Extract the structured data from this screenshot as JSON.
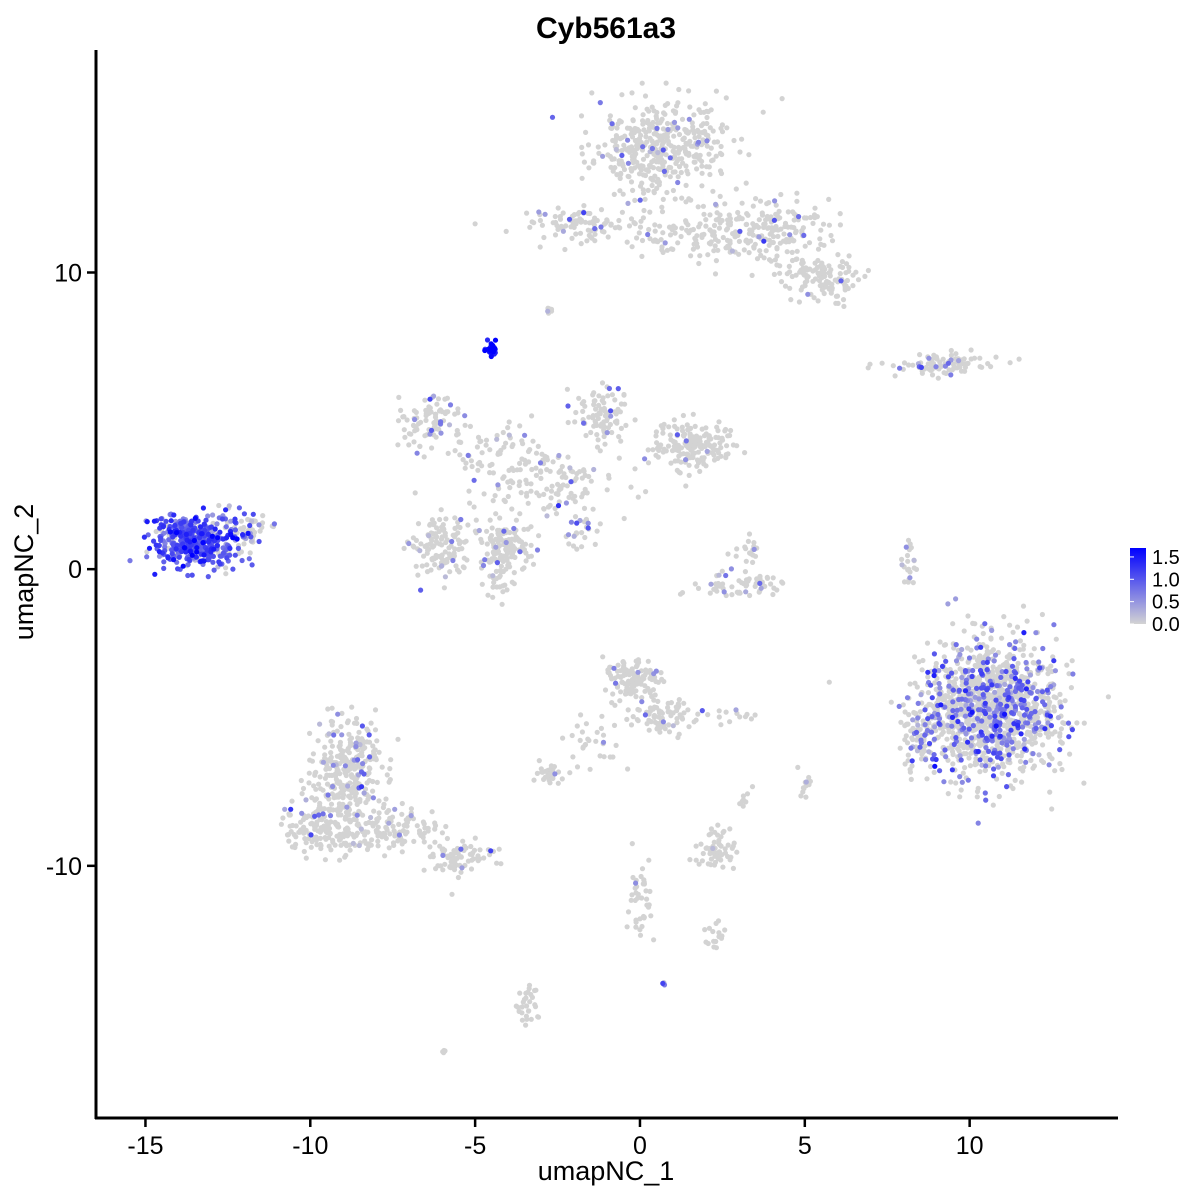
{
  "chart_data": {
    "type": "scatter",
    "title": "Cyb561a3",
    "xlabel": "umapNC_1",
    "ylabel": "umapNC_2",
    "xlim": [
      -16.5,
      14.5
    ],
    "ylim": [
      -18.5,
      17.5
    ],
    "x_ticks": [
      -15,
      -10,
      -5,
      0,
      5,
      10
    ],
    "x_tick_labels": [
      "-15",
      "-10",
      "-5",
      "0",
      "5",
      "10"
    ],
    "y_ticks": [
      -10,
      0,
      10
    ],
    "y_tick_labels": [
      "-10",
      "0",
      "10"
    ],
    "grid": false,
    "legend_position": "right",
    "color_scale": {
      "low_color": "#d3d3d3",
      "high_color": "#0000ff",
      "min": 0,
      "max": 1.7,
      "breaks": [
        0.0,
        0.5,
        1.0,
        1.5
      ],
      "break_labels": [
        "0.0",
        "0.5",
        "1.0",
        "1.5"
      ]
    },
    "clusters": [
      {
        "cx": 0.6,
        "cy": 14.2,
        "sx": 1.3,
        "sy": 1.1,
        "n": 420,
        "expr_frac": 0.06,
        "expr_mean": 0.6
      },
      {
        "cx": 3.6,
        "cy": 11.4,
        "sx": 1.4,
        "sy": 0.7,
        "n": 220,
        "expr_frac": 0.06,
        "expr_mean": 0.6
      },
      {
        "cx": 5.5,
        "cy": 9.8,
        "sx": 0.8,
        "sy": 0.5,
        "n": 120,
        "expr_frac": 0.04,
        "expr_mean": 0.6
      },
      {
        "cx": -1.9,
        "cy": 11.6,
        "sx": 1.1,
        "sy": 0.35,
        "n": 90,
        "expr_frac": 0.07,
        "expr_mean": 0.6
      },
      {
        "cx": 1.0,
        "cy": 11.2,
        "sx": 1.0,
        "sy": 0.5,
        "n": 60,
        "expr_frac": 0.05,
        "expr_mean": 0.6
      },
      {
        "cx": -4.5,
        "cy": 7.4,
        "sx": 0.13,
        "sy": 0.13,
        "n": 28,
        "expr_frac": 1.0,
        "expr_mean": 1.55
      },
      {
        "cx": -2.7,
        "cy": 8.7,
        "sx": 0.1,
        "sy": 0.1,
        "n": 6,
        "expr_frac": 0.2,
        "expr_mean": 0.5
      },
      {
        "cx": 9.1,
        "cy": 6.9,
        "sx": 1.1,
        "sy": 0.25,
        "n": 90,
        "expr_frac": 0.08,
        "expr_mean": 0.6
      },
      {
        "cx": 1.6,
        "cy": 4.1,
        "sx": 0.8,
        "sy": 0.55,
        "n": 170,
        "expr_frac": 0.04,
        "expr_mean": 0.6
      },
      {
        "cx": -1.1,
        "cy": 5.1,
        "sx": 0.6,
        "sy": 0.7,
        "n": 90,
        "expr_frac": 0.06,
        "expr_mean": 0.6
      },
      {
        "cx": -2.6,
        "cy": 2.9,
        "sx": 1.3,
        "sy": 0.9,
        "n": 120,
        "expr_frac": 0.04,
        "expr_mean": 0.6
      },
      {
        "cx": -6.3,
        "cy": 5.0,
        "sx": 0.8,
        "sy": 0.7,
        "n": 90,
        "expr_frac": 0.12,
        "expr_mean": 0.6
      },
      {
        "cx": -4.4,
        "cy": 3.9,
        "sx": 0.8,
        "sy": 0.8,
        "n": 60,
        "expr_frac": 0.08,
        "expr_mean": 0.6
      },
      {
        "cx": -6.0,
        "cy": 0.7,
        "sx": 0.55,
        "sy": 0.7,
        "n": 130,
        "expr_frac": 0.06,
        "expr_mean": 0.6
      },
      {
        "cx": -4.1,
        "cy": 0.6,
        "sx": 0.55,
        "sy": 0.8,
        "n": 150,
        "expr_frac": 0.06,
        "expr_mean": 0.6
      },
      {
        "cx": -1.9,
        "cy": 1.2,
        "sx": 0.4,
        "sy": 0.35,
        "n": 25,
        "expr_frac": 0.4,
        "expr_mean": 0.7
      },
      {
        "cx": -13.5,
        "cy": 1.0,
        "sx": 0.85,
        "sy": 0.55,
        "n": 480,
        "expr_frac": 0.85,
        "expr_mean": 1.0
      },
      {
        "cx": -12.0,
        "cy": 1.3,
        "sx": 0.5,
        "sy": 0.4,
        "n": 60,
        "expr_frac": 0.3,
        "expr_mean": 0.7
      },
      {
        "cx": 3.3,
        "cy": -0.6,
        "sx": 1.0,
        "sy": 0.35,
        "n": 60,
        "expr_frac": 0.1,
        "expr_mean": 0.6
      },
      {
        "cx": 3.3,
        "cy": 0.6,
        "sx": 0.3,
        "sy": 0.3,
        "n": 18,
        "expr_frac": 0.05,
        "expr_mean": 0.5
      },
      {
        "cx": 8.1,
        "cy": 0.1,
        "sx": 0.15,
        "sy": 0.6,
        "n": 22,
        "expr_frac": 0.15,
        "expr_mean": 0.5
      },
      {
        "cx": 10.6,
        "cy": -4.7,
        "sx": 1.35,
        "sy": 1.55,
        "n": 1300,
        "expr_frac": 0.26,
        "expr_mean": 0.8
      },
      {
        "cx": 8.5,
        "cy": -5.6,
        "sx": 0.35,
        "sy": 0.7,
        "n": 60,
        "expr_frac": 0.25,
        "expr_mean": 0.7
      },
      {
        "cx": -0.3,
        "cy": -3.7,
        "sx": 0.55,
        "sy": 0.45,
        "n": 120,
        "expr_frac": 0.05,
        "expr_mean": 0.6
      },
      {
        "cx": 0.7,
        "cy": -4.9,
        "sx": 0.7,
        "sy": 0.45,
        "n": 80,
        "expr_frac": 0.05,
        "expr_mean": 0.6
      },
      {
        "cx": -1.6,
        "cy": -5.8,
        "sx": 0.6,
        "sy": 0.6,
        "n": 30,
        "expr_frac": 0.02,
        "expr_mean": 0.5
      },
      {
        "cx": -2.7,
        "cy": -6.9,
        "sx": 0.3,
        "sy": 0.2,
        "n": 30,
        "expr_frac": 0.05,
        "expr_mean": 0.5
      },
      {
        "cx": 2.7,
        "cy": -5.0,
        "sx": 0.35,
        "sy": 0.15,
        "n": 12,
        "expr_frac": 0.2,
        "expr_mean": 0.6
      },
      {
        "cx": 5.0,
        "cy": -7.4,
        "sx": 0.12,
        "sy": 0.3,
        "n": 12,
        "expr_frac": 0.2,
        "expr_mean": 0.6
      },
      {
        "cx": 3.2,
        "cy": -7.8,
        "sx": 0.12,
        "sy": 0.3,
        "n": 8,
        "expr_frac": 0.0,
        "expr_mean": 0.5
      },
      {
        "cx": -8.8,
        "cy": -6.8,
        "sx": 0.7,
        "sy": 1.1,
        "n": 280,
        "expr_frac": 0.1,
        "expr_mean": 0.6
      },
      {
        "cx": -9.6,
        "cy": -8.6,
        "sx": 0.8,
        "sy": 0.7,
        "n": 180,
        "expr_frac": 0.1,
        "expr_mean": 0.6
      },
      {
        "cx": -7.5,
        "cy": -8.8,
        "sx": 0.9,
        "sy": 0.45,
        "n": 120,
        "expr_frac": 0.08,
        "expr_mean": 0.6
      },
      {
        "cx": -5.4,
        "cy": -9.7,
        "sx": 0.7,
        "sy": 0.35,
        "n": 80,
        "expr_frac": 0.06,
        "expr_mean": 0.6
      },
      {
        "cx": 2.3,
        "cy": -9.6,
        "sx": 0.45,
        "sy": 0.3,
        "n": 50,
        "expr_frac": 0.03,
        "expr_mean": 0.5
      },
      {
        "cx": 2.4,
        "cy": -8.9,
        "sx": 0.2,
        "sy": 0.2,
        "n": 12,
        "expr_frac": 0.0,
        "expr_mean": 0.5
      },
      {
        "cx": 0.0,
        "cy": -11.3,
        "sx": 0.25,
        "sy": 0.9,
        "n": 40,
        "expr_frac": 0.05,
        "expr_mean": 0.5
      },
      {
        "cx": 2.2,
        "cy": -12.4,
        "sx": 0.4,
        "sy": 0.3,
        "n": 16,
        "expr_frac": 0.05,
        "expr_mean": 0.5
      },
      {
        "cx": -3.4,
        "cy": -14.7,
        "sx": 0.2,
        "sy": 0.5,
        "n": 30,
        "expr_frac": 0.0,
        "expr_mean": 0.5
      },
      {
        "cx": -6.0,
        "cy": -16.3,
        "sx": 0.06,
        "sy": 0.06,
        "n": 4,
        "expr_frac": 0.0,
        "expr_mean": 0.5
      },
      {
        "cx": 0.7,
        "cy": -14.0,
        "sx": 0.05,
        "sy": 0.05,
        "n": 3,
        "expr_frac": 1.0,
        "expr_mean": 0.7
      }
    ]
  }
}
